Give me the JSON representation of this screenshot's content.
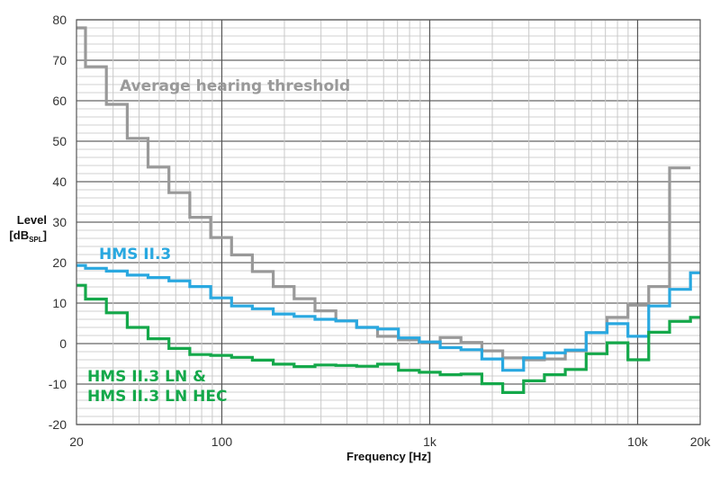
{
  "chart_data": {
    "type": "line",
    "style": "step (third-octave bands)",
    "xlabel": "Frequency [Hz]",
    "ylabel_main": "Level",
    "ylabel_unit_open": "[dB",
    "ylabel_unit_sub": "SPL",
    "ylabel_unit_close": "]",
    "xscale": "log",
    "xlim": [
      20,
      20000
    ],
    "ylim": [
      -20,
      80
    ],
    "grid": true,
    "x_ticks": [
      {
        "value": 20,
        "label": "20"
      },
      {
        "value": 100,
        "label": "100"
      },
      {
        "value": 1000,
        "label": "1k"
      },
      {
        "value": 10000,
        "label": "10k"
      },
      {
        "value": 20000,
        "label": "20k"
      }
    ],
    "y_ticks": [
      80,
      70,
      60,
      50,
      40,
      30,
      20,
      10,
      0,
      -10,
      -20
    ],
    "band_centers": [
      20,
      25,
      31.5,
      40,
      50,
      63,
      80,
      100,
      125,
      160,
      200,
      250,
      315,
      400,
      500,
      630,
      800,
      1000,
      1250,
      1600,
      2000,
      2500,
      3150,
      4000,
      5000,
      6300,
      8000,
      10000,
      12500,
      16000,
      20000
    ],
    "series": [
      {
        "name": "Average hearing threshold",
        "color": "#999999",
        "values": [
          78,
          68.4,
          59.1,
          50.7,
          43.6,
          37.3,
          31.2,
          26.2,
          21.9,
          17.8,
          14.1,
          11.1,
          8.1,
          5.6,
          4.0,
          1.8,
          0.9,
          0.4,
          1.5,
          0.3,
          -1.8,
          -3.5,
          -4.0,
          -3.8,
          -1.8,
          2.7,
          6.5,
          9.5,
          14.1,
          43.4
        ]
      },
      {
        "name": "HMS II.3",
        "color": "#29a8e0",
        "values": [
          19.3,
          18.6,
          17.9,
          16.9,
          16.3,
          15.5,
          14.1,
          11.3,
          9.3,
          8.6,
          7.3,
          6.7,
          6.0,
          5.6,
          4.0,
          3.6,
          1.4,
          0.4,
          -1.0,
          -1.5,
          -3.8,
          -6.6,
          -3.5,
          -2.3,
          -1.6,
          2.7,
          4.9,
          1.8,
          9.3,
          13.4,
          17.5
        ]
      },
      {
        "name": "HMS II.3 LN & HMS II.3 LN HEC",
        "label_line1": "HMS II.3 LN &",
        "label_line2": "HMS II.3 LN HEC",
        "color": "#14a84a",
        "values": [
          14.4,
          11.0,
          7.6,
          4.0,
          1.2,
          -1.2,
          -2.7,
          -2.9,
          -3.4,
          -4.1,
          -5.1,
          -5.7,
          -5.3,
          -5.4,
          -5.6,
          -5.1,
          -6.6,
          -7.1,
          -7.7,
          -7.5,
          -9.9,
          -12.1,
          -9.2,
          -7.7,
          -6.4,
          -2.5,
          0.2,
          -4.0,
          2.8,
          5.5,
          6.5
        ]
      }
    ]
  }
}
